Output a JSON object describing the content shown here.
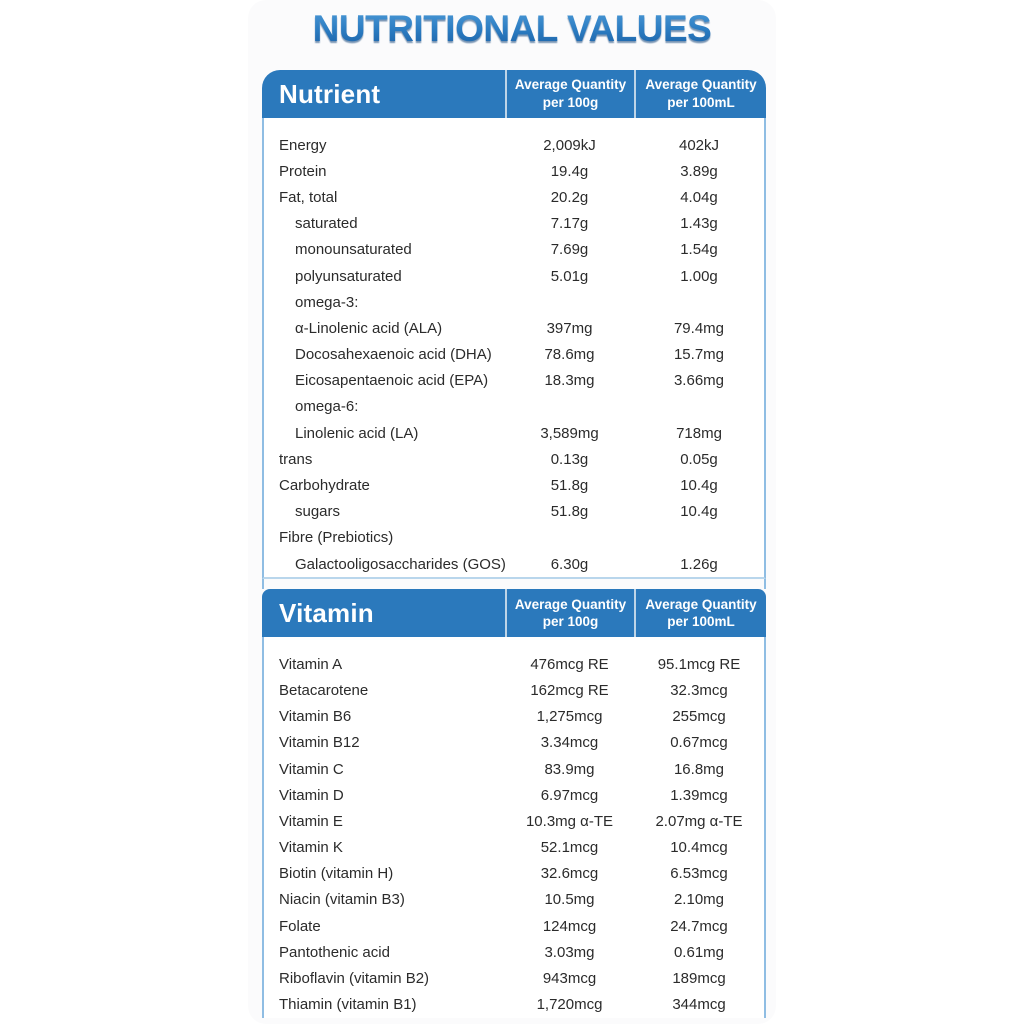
{
  "title": "NUTRITIONAL VALUES",
  "columns": [
    {
      "line1": "Average Quantity",
      "line2": "per 100g"
    },
    {
      "line1": "Average Quantity",
      "line2": "per 100mL"
    }
  ],
  "sections": [
    {
      "header": "Nutrient",
      "rows": [
        {
          "label": "Energy",
          "indent": 0,
          "per_100g": "2,009kJ",
          "per_100ml": "402kJ"
        },
        {
          "label": "Protein",
          "indent": 0,
          "per_100g": "19.4g",
          "per_100ml": "3.89g"
        },
        {
          "label": "Fat, total",
          "indent": 0,
          "per_100g": "20.2g",
          "per_100ml": "4.04g"
        },
        {
          "label": "saturated",
          "indent": 1,
          "per_100g": "7.17g",
          "per_100ml": "1.43g"
        },
        {
          "label": "monounsaturated",
          "indent": 1,
          "per_100g": "7.69g",
          "per_100ml": "1.54g"
        },
        {
          "label": "polyunsaturated",
          "indent": 1,
          "per_100g": "5.01g",
          "per_100ml": "1.00g"
        },
        {
          "label": "omega-3:",
          "indent": 1,
          "per_100g": "",
          "per_100ml": ""
        },
        {
          "label": "α-Linolenic acid (ALA)",
          "indent": 1,
          "per_100g": "397mg",
          "per_100ml": "79.4mg"
        },
        {
          "label": "Docosahexaenoic acid (DHA)",
          "indent": 1,
          "per_100g": "78.6mg",
          "per_100ml": "15.7mg"
        },
        {
          "label": "Eicosapentaenoic acid (EPA)",
          "indent": 1,
          "per_100g": "18.3mg",
          "per_100ml": "3.66mg"
        },
        {
          "label": "omega-6:",
          "indent": 1,
          "per_100g": "",
          "per_100ml": ""
        },
        {
          "label": "Linolenic acid (LA)",
          "indent": 1,
          "per_100g": "3,589mg",
          "per_100ml": "718mg"
        },
        {
          "label": "trans",
          "indent": 0,
          "per_100g": "0.13g",
          "per_100ml": "0.05g"
        },
        {
          "label": "Carbohydrate",
          "indent": 0,
          "per_100g": "51.8g",
          "per_100ml": "10.4g"
        },
        {
          "label": "sugars",
          "indent": 1,
          "per_100g": "51.8g",
          "per_100ml": "10.4g"
        },
        {
          "label": "Fibre (Prebiotics)",
          "indent": 0,
          "per_100g": "",
          "per_100ml": ""
        },
        {
          "label": "Galactooligosaccharides (GOS)",
          "indent": 1,
          "per_100g": "6.30g",
          "per_100ml": "1.26g"
        }
      ]
    },
    {
      "header": "Vitamin",
      "rows": [
        {
          "label": "Vitamin A",
          "indent": 0,
          "per_100g": "476mcg RE",
          "per_100ml": "95.1mcg RE"
        },
        {
          "label": "Betacarotene",
          "indent": 0,
          "per_100g": "162mcg RE",
          "per_100ml": "32.3mcg"
        },
        {
          "label": "Vitamin B6",
          "indent": 0,
          "per_100g": "1,275mcg",
          "per_100ml": "255mcg"
        },
        {
          "label": "Vitamin B12",
          "indent": 0,
          "per_100g": "3.34mcg",
          "per_100ml": "0.67mcg"
        },
        {
          "label": "Vitamin C",
          "indent": 0,
          "per_100g": "83.9mg",
          "per_100ml": "16.8mg"
        },
        {
          "label": "Vitamin D",
          "indent": 0,
          "per_100g": "6.97mcg",
          "per_100ml": "1.39mcg"
        },
        {
          "label": "Vitamin E",
          "indent": 0,
          "per_100g": "10.3mg α-TE",
          "per_100ml": "2.07mg α-TE"
        },
        {
          "label": "Vitamin K",
          "indent": 0,
          "per_100g": "52.1mcg",
          "per_100ml": "10.4mcg"
        },
        {
          "label": "Biotin (vitamin H)",
          "indent": 0,
          "per_100g": "32.6mcg",
          "per_100ml": "6.53mcg"
        },
        {
          "label": "Niacin (vitamin B3)",
          "indent": 0,
          "per_100g": "10.5mg",
          "per_100ml": "2.10mg"
        },
        {
          "label": "Folate",
          "indent": 0,
          "per_100g": "124mcg",
          "per_100ml": "24.7mcg"
        },
        {
          "label": "Pantothenic acid",
          "indent": 0,
          "per_100g": "3.03mg",
          "per_100ml": "0.61mg"
        },
        {
          "label": "Riboflavin (vitamin B2)",
          "indent": 0,
          "per_100g": "943mcg",
          "per_100ml": "189mcg"
        },
        {
          "label": "Thiamin (vitamin B1)",
          "indent": 0,
          "per_100g": "1,720mcg",
          "per_100ml": "344mcg"
        }
      ]
    }
  ],
  "colors": {
    "header_blue": "#2b79bc",
    "title_blue_top": "#4e9bd8",
    "title_blue_bottom": "#1b5fa3",
    "border_light": "#8fbde3",
    "body_text": "#2b2b2b"
  }
}
